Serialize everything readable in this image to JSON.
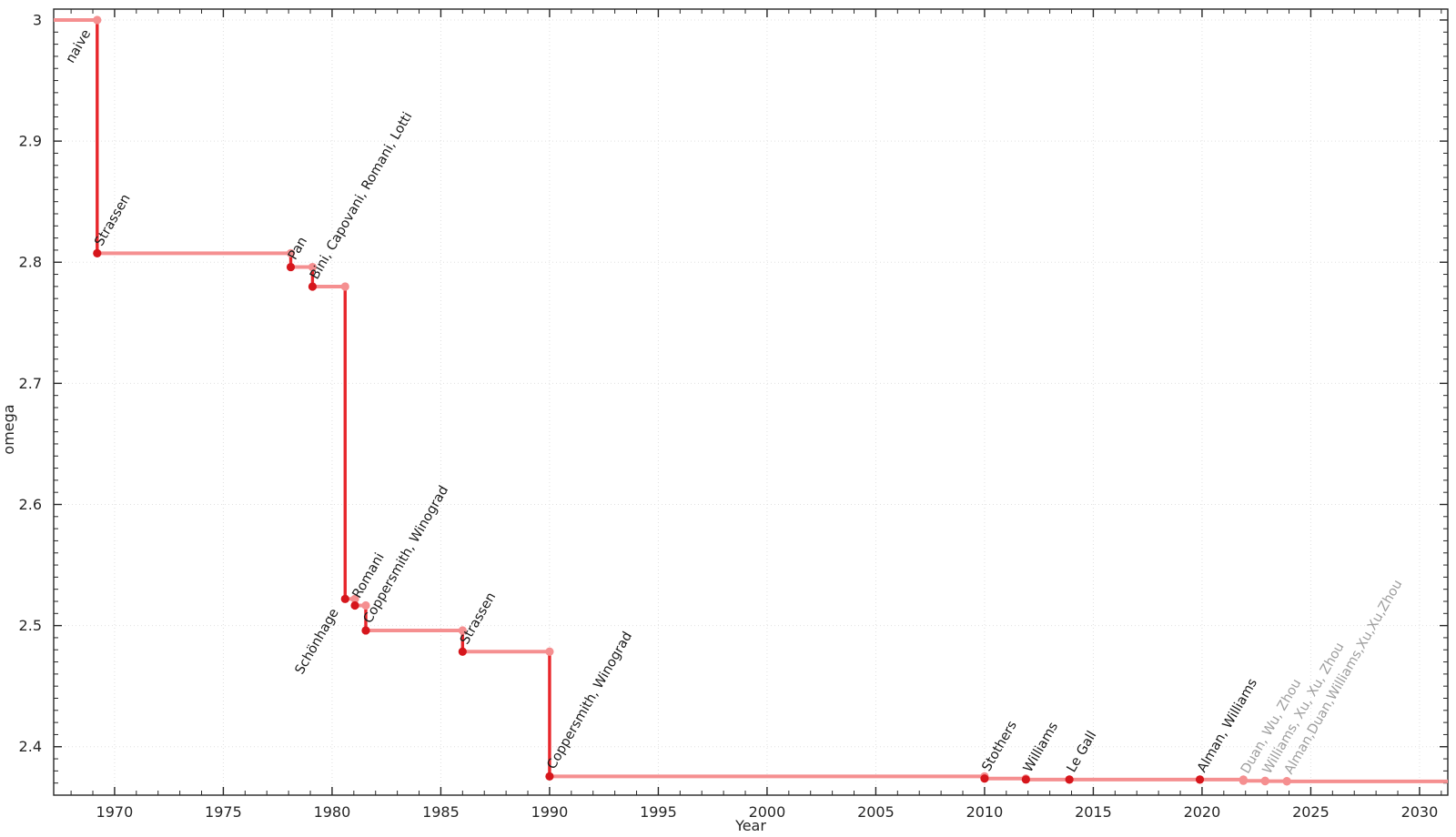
{
  "figure": {
    "background": "#ffffff",
    "style": {
      "step_line_color": "#f58f90",
      "drop_line_color": "#e8262b",
      "record_marker_color": "#d6161c",
      "provisional_marker_color": "#f58f90",
      "label_color": "#1a1a1a",
      "provisional_label_color": "#9e9e9e",
      "grid_color": "#e0e0e0",
      "axis_color": "#262626",
      "tick_label_color": "#262626",
      "step_line_width": 4,
      "drop_line_width": 3.4,
      "marker_radius": 4.6,
      "label_rotation_deg": -60,
      "label_font_size": 14.5,
      "tick_font_size": 16,
      "axis_label_font_size": 16
    }
  },
  "chart_data": {
    "type": "line",
    "subtype": "step-post-records",
    "title": "",
    "xlabel": "Year",
    "ylabel": "omega",
    "xlim": [
      1967.2,
      2031.3
    ],
    "ylim": [
      2.36,
      3.009
    ],
    "grid": "dotted-major",
    "legend": "none",
    "x_major_ticks": [
      1970,
      1975,
      1980,
      1985,
      1990,
      1995,
      2000,
      2005,
      2010,
      2015,
      2020,
      2025,
      2030
    ],
    "x_minor_step": 1,
    "y_major_ticks": [
      {
        "value": 3.0,
        "label": "3"
      },
      {
        "value": 2.9,
        "label": "2.9"
      },
      {
        "value": 2.8,
        "label": "2.8"
      },
      {
        "value": 2.7,
        "label": "2.7"
      },
      {
        "value": 2.6,
        "label": "2.6"
      },
      {
        "value": 2.5,
        "label": "2.5"
      },
      {
        "value": 2.4,
        "label": "2.4"
      }
    ],
    "y_minor_step": 0.01,
    "points": [
      {
        "label": "naive",
        "x": 1967.2,
        "year": null,
        "omega": 3.0,
        "marker": "none",
        "label_align": "end",
        "label_anchor_x": 1969.2
      },
      {
        "label": "Strassen",
        "x": 1969.2,
        "year": 1969,
        "omega": 2.8074,
        "marker": "solid",
        "label_align": "start"
      },
      {
        "label": "Pan",
        "x": 1978.1,
        "year": 1978,
        "omega": 2.796,
        "marker": "solid",
        "label_align": "start"
      },
      {
        "label": "Bini, Capovani, Romani, Lotti",
        "x": 1979.1,
        "year": 1979,
        "omega": 2.7799,
        "marker": "solid",
        "label_align": "start"
      },
      {
        "label": "Schönhage",
        "x": 1980.6,
        "year": 1981,
        "omega": 2.522,
        "marker": "solid",
        "label_align": "end"
      },
      {
        "label": "Romani",
        "x": 1981.05,
        "year": 1981,
        "omega": 2.5166,
        "marker": "solid",
        "label_align": "start"
      },
      {
        "label": "Coppersmith, Winograd",
        "x": 1981.55,
        "year": 1981,
        "omega": 2.496,
        "marker": "solid",
        "label_align": "start"
      },
      {
        "label": "Strassen",
        "x": 1986.0,
        "year": 1986,
        "omega": 2.4785,
        "marker": "solid",
        "label_align": "start"
      },
      {
        "label": "Coppersmith, Winograd",
        "x": 1990.0,
        "year": 1990,
        "omega": 2.3755,
        "marker": "solid",
        "label_align": "start"
      },
      {
        "label": "Stothers",
        "x": 2010.0,
        "year": 2010,
        "omega": 2.3737,
        "marker": "solid",
        "label_align": "start"
      },
      {
        "label": "Williams",
        "x": 2011.9,
        "year": 2012,
        "omega": 2.3729,
        "marker": "solid",
        "label_align": "start"
      },
      {
        "label": "Le Gall",
        "x": 2013.9,
        "year": 2014,
        "omega": 2.3728639,
        "marker": "solid",
        "label_align": "start"
      },
      {
        "label": "Alman, Williams",
        "x": 2019.9,
        "year": 2020,
        "omega": 2.3728596,
        "marker": "solid",
        "label_align": "start"
      },
      {
        "label": "Duan, Wu, Zhou",
        "x": 2021.9,
        "year": 2022,
        "omega": 2.371866,
        "marker": "light",
        "label_align": "start",
        "provisional": true
      },
      {
        "label": "Williams, Xu, Xu, Zhou",
        "x": 2022.9,
        "year": 2023,
        "omega": 2.371552,
        "marker": "light",
        "label_align": "start",
        "provisional": true
      },
      {
        "label": "Alman,Duan,Williams,Xu,Xu,Zhou",
        "x": 2023.9,
        "year": 2024,
        "omega": 2.371339,
        "marker": "light",
        "label_align": "start",
        "provisional": true
      }
    ]
  }
}
